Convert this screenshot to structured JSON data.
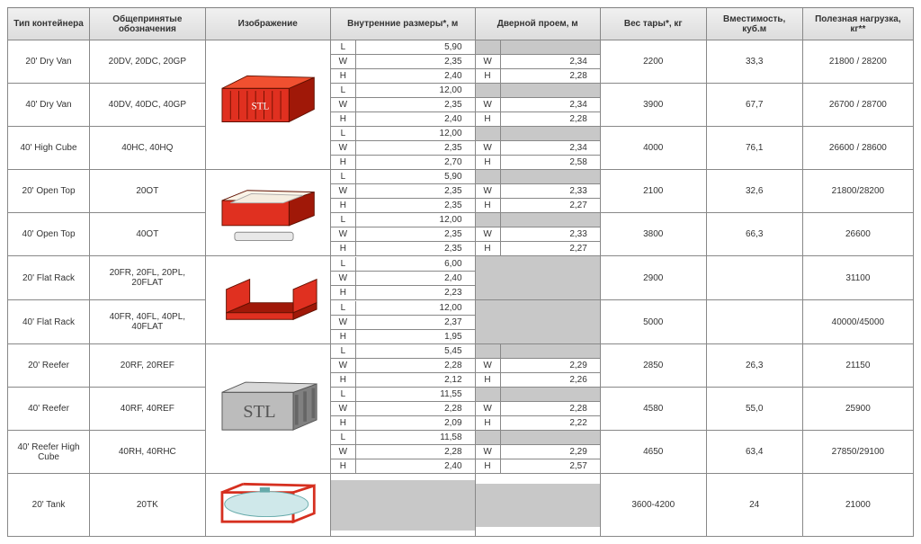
{
  "headers": {
    "type": "Тип контейнера",
    "designations": "Общепринятые обозначения",
    "image": "Изображение",
    "internal": "Внутренние размеры*, м",
    "door": "Дверной проем, м",
    "tare": "Вес тары*, кг",
    "capacity": "Вместимость, куб.м",
    "payload": "Полезная нагрузка, кг**"
  },
  "dim_labels": {
    "L": "L",
    "W": "W",
    "H": "H"
  },
  "colors": {
    "container_red": "#e03020",
    "container_red_dark": "#a01808",
    "reefer_gray": "#bcbcbc",
    "reefer_dark": "#808080",
    "tank_red": "#d63020",
    "tank_cyl": "#cfe8ea",
    "border": "#888888",
    "header_bg": "#e2e2e2",
    "na_bg": "#c8c8c8"
  },
  "rows": [
    {
      "type": "20' Dry Van",
      "desig": "20DV, 20DC, 20GP",
      "img": "dryvan",
      "int": {
        "L": "5,90",
        "W": "2,35",
        "H": "2,40"
      },
      "door": {
        "W": "2,34",
        "H": "2,28"
      },
      "tare": "2200",
      "cap": "33,3",
      "pay": "21800 / 28200"
    },
    {
      "type": "40' Dry Van",
      "desig": "40DV, 40DC, 40GP",
      "img": null,
      "int": {
        "L": "12,00",
        "W": "2,35",
        "H": "2,40"
      },
      "door": {
        "W": "2,34",
        "H": "2,28"
      },
      "tare": "3900",
      "cap": "67,7",
      "pay": "26700 / 28700"
    },
    {
      "type": "40' High Cube",
      "desig": "40HC, 40HQ",
      "img": null,
      "int": {
        "L": "12,00",
        "W": "2,35",
        "H": "2,70"
      },
      "door": {
        "W": "2,34",
        "H": "2,58"
      },
      "tare": "4000",
      "cap": "76,1",
      "pay": "26600 / 28600"
    },
    {
      "type": "20' Open Top",
      "desig": "20OT",
      "img": "opentop",
      "int": {
        "L": "5,90",
        "W": "2,35",
        "H": "2,35"
      },
      "door": {
        "W": "2,33",
        "H": "2,27"
      },
      "tare": "2100",
      "cap": "32,6",
      "pay": "21800/28200"
    },
    {
      "type": "40' Open Top",
      "desig": "40OT",
      "img": null,
      "int": {
        "L": "12,00",
        "W": "2,35",
        "H": "2,35"
      },
      "door": {
        "W": "2,33",
        "H": "2,27"
      },
      "tare": "3800",
      "cap": "66,3",
      "pay": "26600"
    },
    {
      "type": "20' Flat Rack",
      "desig": "20FR, 20FL, 20PL, 20FLAT",
      "img": "flatrack",
      "int": {
        "L": "6,00",
        "W": "2,40",
        "H": "2,23"
      },
      "door": null,
      "tare": "2900",
      "cap": "",
      "pay": "31100"
    },
    {
      "type": "40' Flat Rack",
      "desig": "40FR, 40FL, 40PL, 40FLAT",
      "img": null,
      "int": {
        "L": "12,00",
        "W": "2,37",
        "H": "1,95"
      },
      "door": null,
      "tare": "5000",
      "cap": "",
      "pay": "40000/45000"
    },
    {
      "type": "20' Reefer",
      "desig": "20RF, 20REF",
      "img": "reefer",
      "int": {
        "L": "5,45",
        "W": "2,28",
        "H": "2,12"
      },
      "door": {
        "W": "2,29",
        "H": "2,26"
      },
      "tare": "2850",
      "cap": "26,3",
      "pay": "21150"
    },
    {
      "type": "40' Reefer",
      "desig": "40RF, 40REF",
      "img": null,
      "int": {
        "L": "11,55",
        "W": "2,28",
        "H": "2,09"
      },
      "door": {
        "W": "2,28",
        "H": "2,22"
      },
      "tare": "4580",
      "cap": "55,0",
      "pay": "25900"
    },
    {
      "type": "40' Reefer High Cube",
      "desig": "40RH, 40RHC",
      "img": null,
      "int": {
        "L": "11,58",
        "W": "2,28",
        "H": "2,40"
      },
      "door": {
        "W": "2,29",
        "H": "2,57"
      },
      "tare": "4650",
      "cap": "63,4",
      "pay": "27850/29100"
    },
    {
      "type": "20' Tank",
      "desig": "20TK",
      "img": "tank",
      "int": null,
      "door": null,
      "tare": "3600-4200",
      "cap": "24",
      "pay": "21000"
    }
  ]
}
